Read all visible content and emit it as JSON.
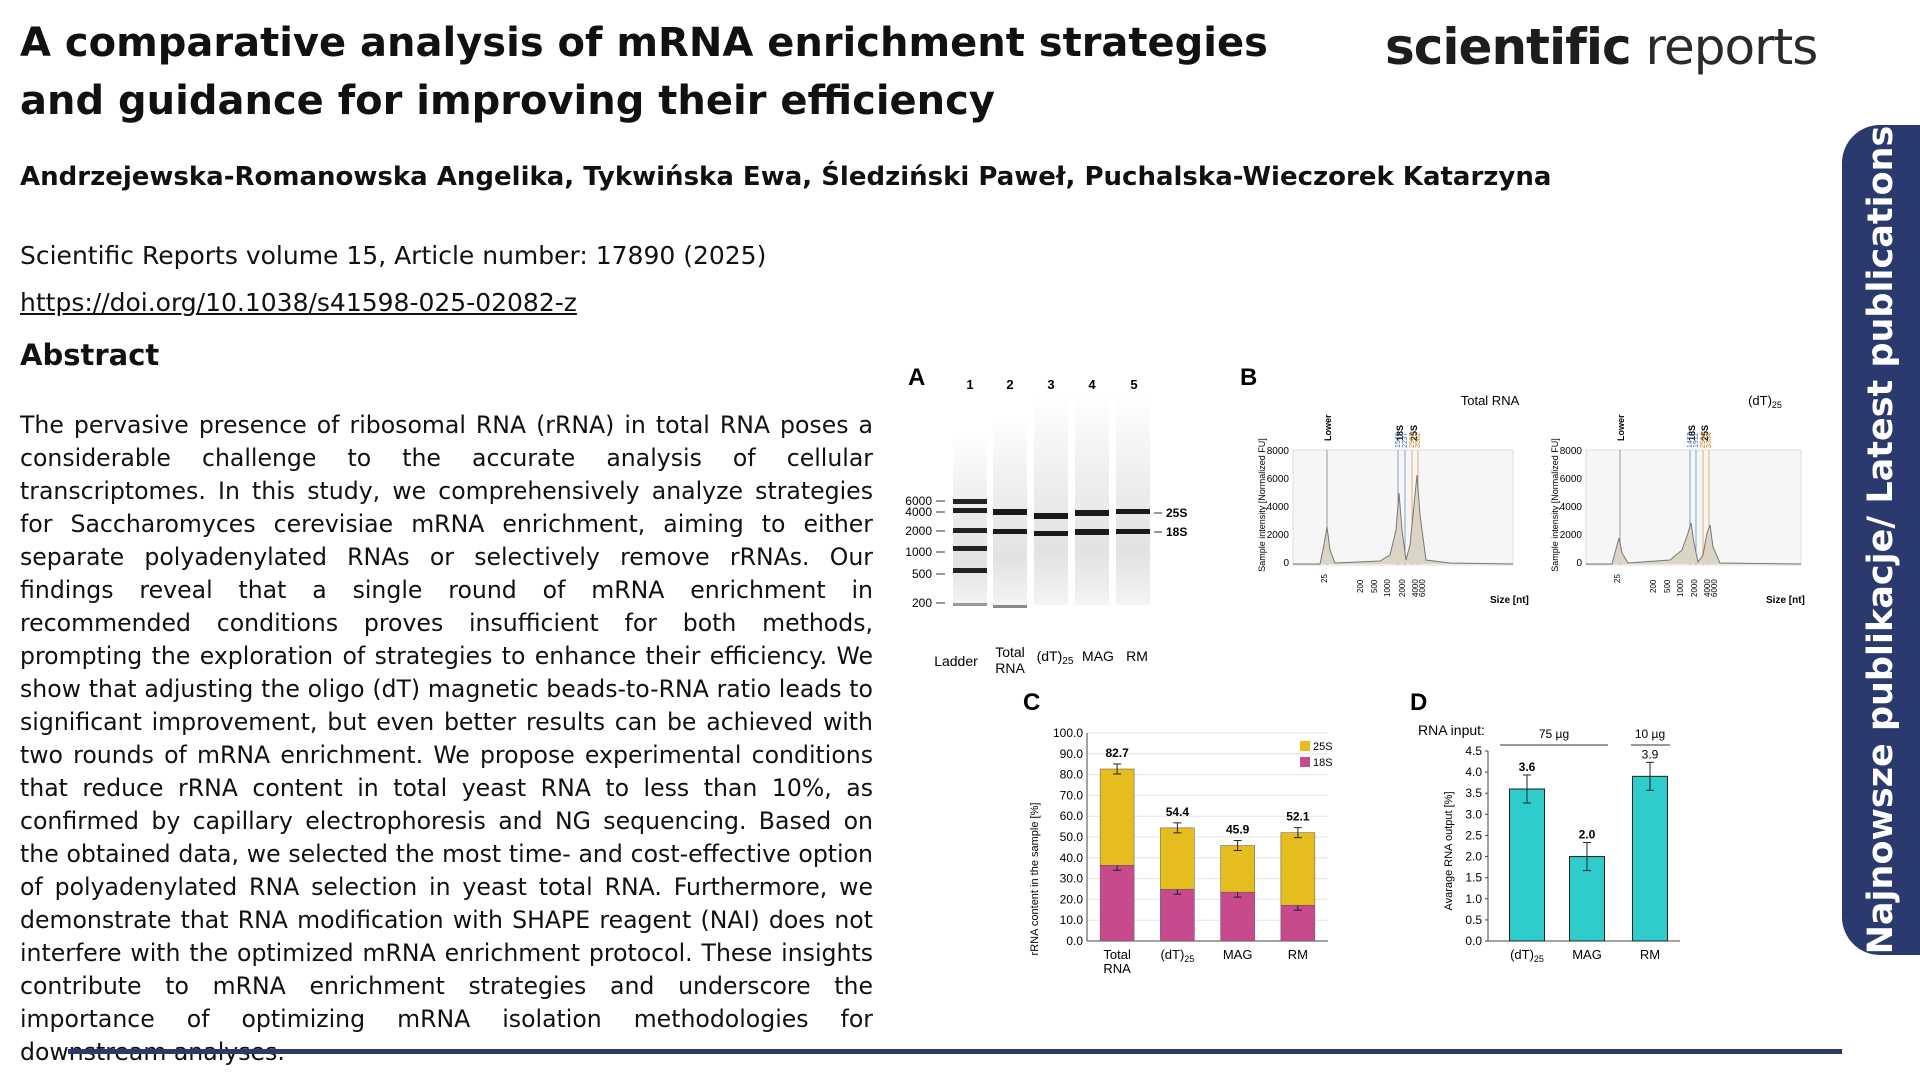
{
  "title": "A comparative analysis of mRNA enrichment strategies and guidance for improving their efficiency",
  "journal": {
    "bold": "scientific",
    "light": "reports"
  },
  "authors": "Andrzejewska-Romanowska Angelika, Tykwińska Ewa, Śledziński Paweł, Puchalska-Wieczorek Katarzyna",
  "citation": "Scientific Reports volume 15, Article number: 17890 (2025)",
  "doi": "https://doi.org/10.1038/s41598-025-02082-z",
  "abstract_heading": "Abstract",
  "abstract": "The pervasive presence of ribosomal RNA (rRNA) in total RNA poses a considerable challenge to the accurate analysis of cellular transcriptomes. In this study, we comprehensively analyze strategies for Saccharomyces cerevisiae mRNA enrichment, aiming to either separate polyadenylated RNAs or selectively remove rRNAs. Our findings reveal that a single round of mRNA enrichment in recommended conditions proves insufficient for both methods, prompting the exploration of strategies to enhance their efficiency. We show that adjusting the oligo (dT) magnetic beads-to-RNA ratio leads to significant improvement, but even better results can be achieved with two rounds of mRNA enrichment. We propose experimental conditions that reduce rRNA content in total yeast RNA to less than 10%, as confirmed by capillary electrophoresis and NG sequencing. Based on the obtained data, we selected the most time- and cost-effective option of polyadenylated RNA selection in yeast total RNA. Furthermore, we demonstrate that RNA modification with SHAPE reagent (NAI) does not interfere with the optimized mRNA enrichment protocol. These insights contribute to mRNA enrichment strategies and underscore the importance of optimizing mRNA isolation methodologies for downstream analyses.",
  "side_tab": "Najnowsze publikacje/ Latest publications",
  "colors": {
    "navy": "#2b3a6e",
    "yellow": "#e6bd1f",
    "magenta": "#c64a8c",
    "teal": "#2ecdcc"
  },
  "figure": {
    "panelA": {
      "letter": "A",
      "lanes": [
        "1",
        "2",
        "3",
        "4",
        "5"
      ],
      "ladder_ticks": [
        "6000",
        "4000",
        "2000",
        "1000",
        "500",
        "200"
      ],
      "band_labels": [
        "25S",
        "18S"
      ],
      "lane_labels": [
        "Ladder",
        "Total RNA",
        "(dT)25",
        "MAG",
        "RM"
      ]
    },
    "panelB": {
      "letter": "B",
      "ylabel": "Sample intensity [Normalized FU]",
      "xlabel": "Size [nt]",
      "yticks": [
        "8000",
        "6000",
        "4000",
        "2000",
        "0"
      ],
      "xticks": [
        "25",
        "200",
        "500",
        "1000",
        "2000",
        "4000",
        "6000"
      ],
      "plots": [
        {
          "title": "Total RNA",
          "peak_labels": [
            "Lower",
            "18S",
            "25S"
          ],
          "size_labels": [
            "1546",
            "2237",
            "2967",
            "3562"
          ]
        },
        {
          "title": "(dT)25",
          "peak_labels": [
            "Lower",
            "18S",
            "25S"
          ],
          "size_labels": [
            "1472",
            "1911",
            "2594",
            "3334"
          ]
        }
      ]
    }
  },
  "chart_data": [
    {
      "panel": "C",
      "type": "bar",
      "stacked": true,
      "categories": [
        "Total RNA",
        "(dT)25",
        "MAG",
        "RM"
      ],
      "series": [
        {
          "name": "18S",
          "values": [
            36.4,
            24.9,
            23.5,
            17.2
          ]
        },
        {
          "name": "25S",
          "values": [
            46.3,
            29.5,
            22.4,
            34.9
          ]
        }
      ],
      "totals": [
        "82.7",
        "54.4",
        "45.9",
        "52.1"
      ],
      "ylabel": "rRNA content in the sample [%]",
      "ylim": [
        0,
        100
      ],
      "yticks": [
        "100.0",
        "90.0",
        "80.0",
        "70.0",
        "60.0",
        "50.0",
        "40.0",
        "30.0",
        "20.0",
        "10.0",
        "0.0"
      ],
      "legend": "top-right"
    },
    {
      "panel": "D",
      "type": "bar",
      "categories": [
        "(dT)25",
        "MAG",
        "RM"
      ],
      "values": [
        3.6,
        2.0,
        3.9
      ],
      "value_labels": [
        "3.6",
        "2.0",
        "3.9"
      ],
      "ylabel": "Avarage RNA output [%]",
      "ylim": [
        0,
        4.5
      ],
      "yticks": [
        "4.5",
        "4.0",
        "3.5",
        "3.0",
        "2.5",
        "2.0",
        "1.5",
        "1.0",
        "0.5",
        "0.0"
      ],
      "input_label": "RNA input:",
      "groups": [
        "75 µg",
        "10 µg"
      ]
    }
  ]
}
